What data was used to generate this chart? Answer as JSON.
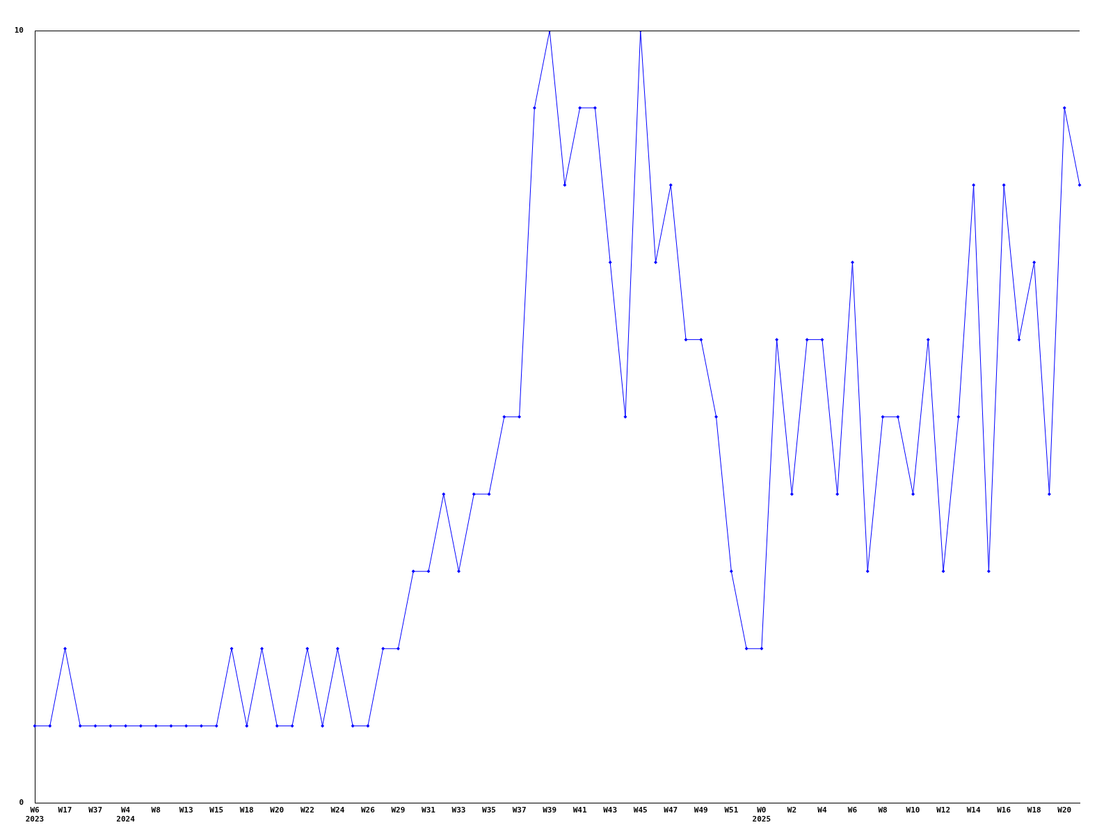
{
  "chart_data": {
    "type": "line",
    "categories": [
      "W6\n2023",
      null,
      "W17",
      null,
      "W37",
      null,
      "W4\n2024",
      null,
      "W8",
      null,
      "W13",
      null,
      "W15",
      null,
      "W18",
      null,
      "W20",
      null,
      "W22",
      null,
      "W24",
      null,
      "W26",
      null,
      "W29",
      null,
      "W31",
      null,
      "W33",
      null,
      "W35",
      null,
      "W37",
      null,
      "W39",
      null,
      "W41",
      null,
      "W43",
      null,
      "W45",
      null,
      "W47",
      null,
      "W49",
      null,
      "W51",
      null,
      "W0\n2025",
      null,
      "W2",
      null,
      "W4",
      null,
      "W6",
      null,
      "W8",
      null,
      "W10",
      null,
      "W12",
      null,
      "W14",
      null,
      "W16",
      null,
      "W18",
      null,
      "W20",
      null
    ],
    "series": [
      {
        "color": "#0000ff",
        "values": [
          1,
          1,
          2,
          1,
          1,
          1,
          1,
          1,
          1,
          1,
          1,
          1,
          1,
          2,
          1,
          2,
          1,
          1,
          2,
          1,
          2,
          1,
          1,
          2,
          2,
          3,
          3,
          4,
          3,
          4,
          4,
          5,
          5,
          9,
          10,
          8,
          9,
          9,
          7,
          5,
          10,
          7,
          8,
          6,
          6,
          5,
          3,
          2,
          2,
          6,
          4,
          6,
          6,
          4,
          7,
          3,
          5,
          5,
          4,
          6,
          3,
          5,
          8,
          3,
          8,
          6,
          7,
          4,
          9,
          8
        ]
      }
    ],
    "ylim": [
      0,
      10
    ],
    "yticks": [
      0,
      10
    ],
    "grid": false,
    "legend": false,
    "marker": "diamond",
    "line_style": "solid"
  }
}
